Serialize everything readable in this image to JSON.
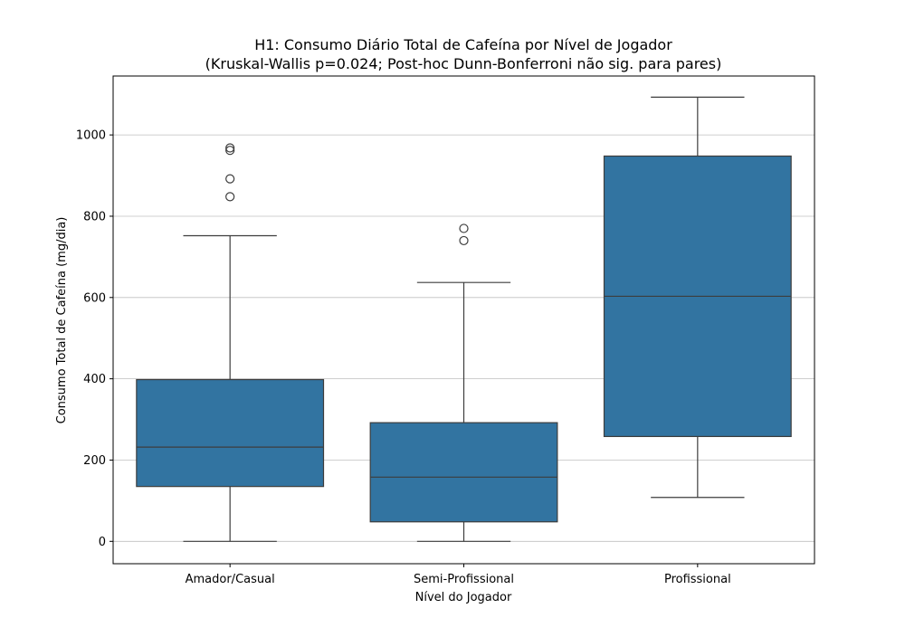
{
  "chart_data": {
    "type": "box",
    "title": "H1: Consumo Diário Total de Cafeína por Nível de Jogador",
    "subtitle": "(Kruskal-Wallis p=0.024; Post-hoc Dunn-Bonferroni não sig. para pares)",
    "xlabel": "Nível do Jogador",
    "ylabel": "Consumo Total de Cafeína (mg/dia)",
    "ylim": [
      -55,
      1145
    ],
    "yticks": [
      0,
      200,
      400,
      600,
      800,
      1000
    ],
    "grid": "y",
    "box_color": "#3274a1",
    "categories": [
      "Amador/Casual",
      "Semi-Profissional",
      "Profissional"
    ],
    "boxes": [
      {
        "category": "Amador/Casual",
        "whisker_low": 0,
        "q1": 135,
        "median": 232,
        "q3": 398,
        "whisker_high": 752,
        "outliers": [
          848,
          892,
          962,
          968
        ]
      },
      {
        "category": "Semi-Profissional",
        "whisker_low": 0,
        "q1": 48,
        "median": 158,
        "q3": 292,
        "whisker_high": 637,
        "outliers": [
          740,
          770
        ]
      },
      {
        "category": "Profissional",
        "whisker_low": 108,
        "q1": 258,
        "median": 603,
        "q3": 948,
        "whisker_high": 1093,
        "outliers": []
      }
    ]
  }
}
